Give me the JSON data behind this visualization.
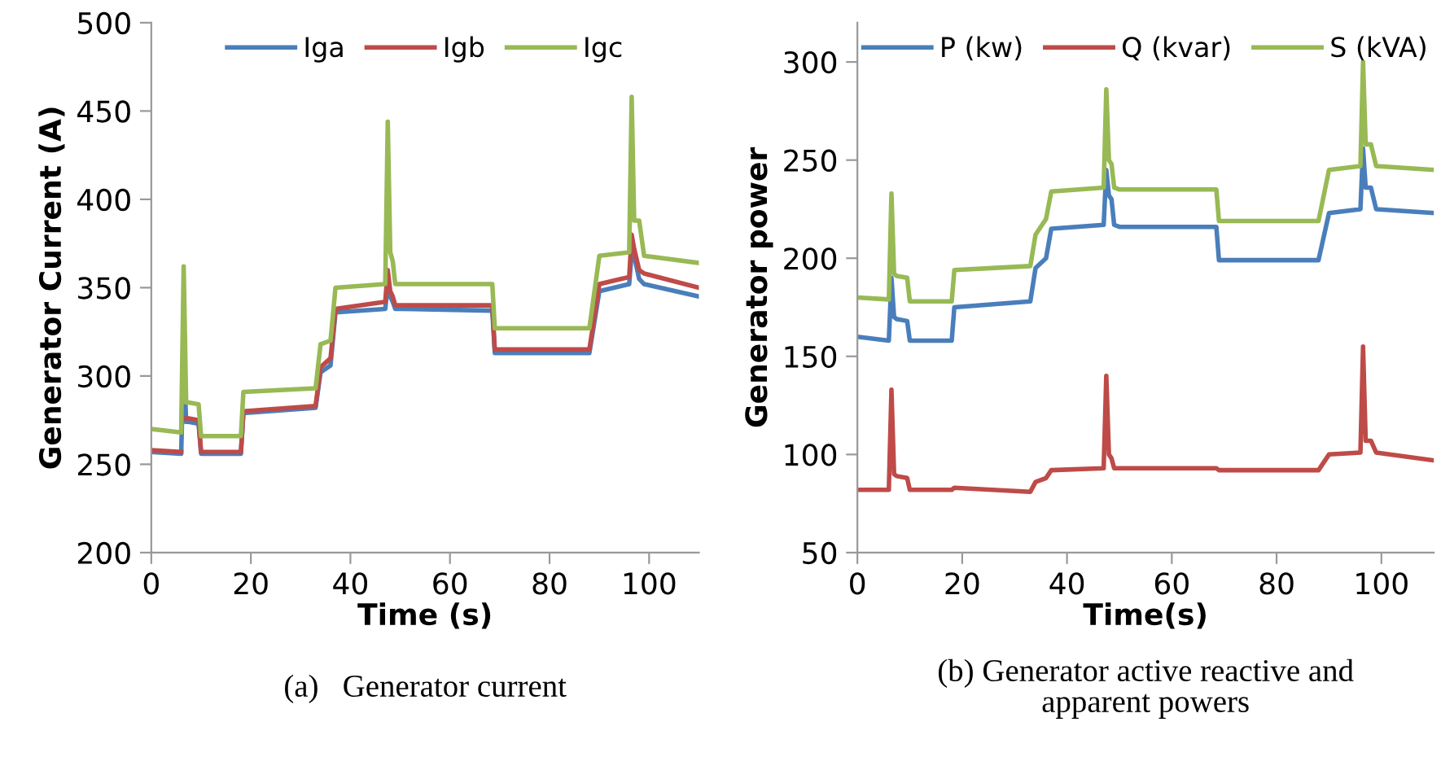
{
  "chart_data": [
    {
      "type": "line",
      "xlabel": "Time (s)",
      "ylabel": "Generator Current (A)",
      "annotations": [
        "(a)   Generator current"
      ],
      "xlim": [
        0,
        110
      ],
      "xticks": [
        0,
        20,
        40,
        60,
        80,
        100
      ],
      "ylim": [
        200,
        500
      ],
      "yticks": [
        200,
        250,
        300,
        350,
        400,
        450,
        500
      ],
      "grid": false,
      "legend": "top",
      "marker": "none",
      "line_style": "solid",
      "x": [
        0,
        6,
        6.5,
        7,
        7.5,
        9.5,
        10,
        18,
        18.5,
        33,
        34,
        36,
        37,
        47,
        47.5,
        48,
        48.5,
        49,
        50,
        68.5,
        69,
        88,
        90,
        96,
        96.5,
        97,
        98,
        99,
        110
      ],
      "series": [
        {
          "name": "Iga",
          "color": "#4a7ebb",
          "values": [
            257,
            256,
            310,
            274,
            274,
            273,
            256,
            256,
            279,
            282,
            302,
            306,
            336,
            338,
            352,
            345,
            342,
            338,
            338,
            337,
            313,
            313,
            348,
            352,
            370,
            368,
            355,
            352,
            345
          ]
        },
        {
          "name": "Igb",
          "color": "#be4b48",
          "values": [
            258,
            257,
            null,
            276,
            276,
            275,
            257,
            257,
            280,
            283,
            305,
            310,
            338,
            342,
            360,
            348,
            345,
            340,
            340,
            340,
            315,
            315,
            352,
            356,
            380,
            372,
            360,
            358,
            350
          ]
        },
        {
          "name": "Igc",
          "color": "#98b954",
          "values": [
            270,
            268,
            362,
            285,
            285,
            284,
            266,
            266,
            291,
            293,
            318,
            320,
            350,
            352,
            444,
            370,
            365,
            352,
            352,
            352,
            327,
            327,
            368,
            370,
            458,
            388,
            388,
            368,
            364
          ]
        }
      ]
    },
    {
      "type": "line",
      "xlabel": "Time(s)",
      "ylabel": "Generator power",
      "annotations": [
        "(b) Generator active reactive and\napparent powers"
      ],
      "xlim": [
        0,
        110
      ],
      "xticks": [
        0,
        20,
        40,
        60,
        80,
        100
      ],
      "ylim": [
        50,
        320
      ],
      "yticks": [
        50,
        100,
        150,
        200,
        250,
        300
      ],
      "grid": false,
      "legend": "top",
      "marker": "none",
      "line_style": "solid",
      "x": [
        0,
        6,
        6.5,
        7,
        7.5,
        9.5,
        10,
        18,
        18.5,
        33,
        34,
        36,
        37,
        47,
        47.5,
        48,
        48.5,
        49,
        50,
        68.5,
        69,
        88,
        90,
        96,
        96.5,
        97,
        98,
        99,
        110
      ],
      "series": [
        {
          "name": "P (kw)",
          "color": "#4a7ebb",
          "values": [
            160,
            158,
            190,
            170,
            169,
            168,
            158,
            158,
            175,
            178,
            195,
            200,
            215,
            217,
            245,
            232,
            230,
            217,
            216,
            216,
            199,
            199,
            223,
            225,
            256,
            236,
            236,
            225,
            223
          ]
        },
        {
          "name": "Q (kvar)",
          "color": "#be4b48",
          "values": [
            82,
            82,
            133,
            90,
            89,
            88,
            82,
            82,
            83,
            81,
            86,
            88,
            92,
            93,
            140,
            100,
            98,
            93,
            93,
            93,
            92,
            92,
            100,
            101,
            155,
            107,
            107,
            101,
            97
          ]
        },
        {
          "name": "S (kVA)",
          "color": "#98b954",
          "values": [
            180,
            179,
            233,
            192,
            191,
            190,
            178,
            178,
            194,
            196,
            212,
            220,
            234,
            236,
            286,
            250,
            248,
            236,
            235,
            235,
            219,
            219,
            245,
            247,
            300,
            258,
            258,
            247,
            245
          ]
        }
      ]
    }
  ]
}
